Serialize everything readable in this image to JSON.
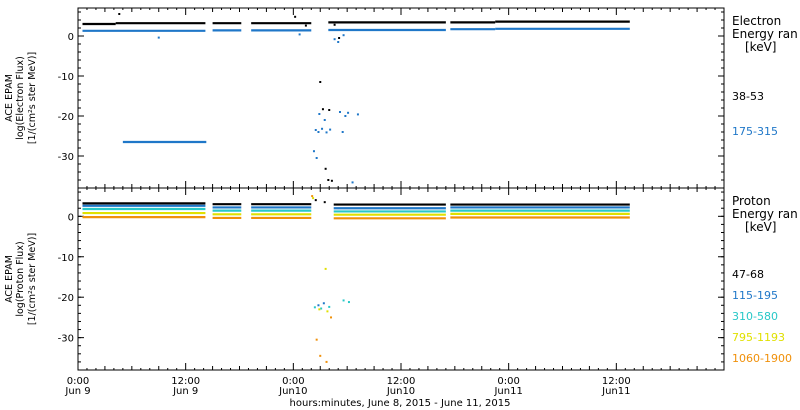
{
  "chart_data": [
    {
      "type": "scatter",
      "panel": "electron",
      "ylabel": [
        "ACE EPAM",
        "log(Electron Flux)",
        "[1/(cm²s ster MeV)]"
      ],
      "ylim": [
        -38,
        7
      ],
      "yticks": [
        0,
        -10,
        -20,
        -30
      ],
      "legend_title": [
        "Electron",
        "Energy ran",
        "[keV]"
      ],
      "legend_placement": "right",
      "series": [
        {
          "name": "38-53",
          "color": "#000000",
          "segments": [
            {
              "x": [
                0.5,
                4.2
              ],
              "y": 3.0
            },
            {
              "x": [
                4.2,
                14.2
              ],
              "y": 3.2
            },
            {
              "x": [
                15.0,
                18.2
              ],
              "y": 3.2
            },
            {
              "x": [
                19.3,
                26.0
              ],
              "y": 3.2
            },
            {
              "x": [
                27.9,
                41.0
              ],
              "y": 3.4
            },
            {
              "x": [
                41.5,
                46.5
              ],
              "y": 3.4
            },
            {
              "x": [
                46.5,
                61.5
              ],
              "y": 3.6
            }
          ],
          "scatter": [
            [
              4.6,
              5.5
            ],
            [
              24.2,
              4.8
            ],
            [
              27.0,
              -11.5
            ],
            [
              27.3,
              -18.3
            ],
            [
              28.0,
              -18.5
            ],
            [
              27.6,
              -33.2
            ],
            [
              27.9,
              -36.0
            ],
            [
              28.3,
              -36.2
            ],
            [
              29.1,
              -0.5
            ],
            [
              28.6,
              2.8
            ],
            [
              25.4,
              2.6
            ]
          ]
        },
        {
          "name": "175-315",
          "color": "#1f77c8",
          "segments": [
            {
              "x": [
                0.5,
                14.2
              ],
              "y": 1.3
            },
            {
              "x": [
                15.0,
                18.2
              ],
              "y": 1.4
            },
            {
              "x": [
                19.3,
                26.0
              ],
              "y": 1.4
            },
            {
              "x": [
                27.9,
                41.0
              ],
              "y": 1.5
            },
            {
              "x": [
                41.5,
                46.5
              ],
              "y": 1.7
            },
            {
              "x": [
                46.5,
                61.5
              ],
              "y": 1.8
            },
            {
              "x": [
                5.0,
                14.3
              ],
              "y": -26.5
            }
          ],
          "scatter": [
            [
              26.5,
              -23.5
            ],
            [
              26.8,
              -24.0
            ],
            [
              27.2,
              -23.2
            ],
            [
              27.7,
              -24.1
            ],
            [
              28.1,
              -23.4
            ],
            [
              26.9,
              -19.5
            ],
            [
              27.5,
              -21.0
            ],
            [
              26.3,
              -28.8
            ],
            [
              26.6,
              -30.5
            ],
            [
              29.2,
              -19.0
            ],
            [
              29.8,
              -20.0
            ],
            [
              30.1,
              -19.2
            ],
            [
              31.2,
              -19.6
            ],
            [
              29.5,
              -24.0
            ],
            [
              30.6,
              -36.6
            ],
            [
              28.6,
              -0.8
            ],
            [
              29.0,
              -1.5
            ],
            [
              29.6,
              0.2
            ],
            [
              9.0,
              -0.4
            ],
            [
              24.7,
              0.4
            ]
          ]
        }
      ]
    },
    {
      "type": "scatter",
      "panel": "proton",
      "ylabel": [
        "ACE EPAM",
        "log(Proton Flux)",
        "[1/(cm²s ster MeV)]"
      ],
      "ylim": [
        -38,
        7
      ],
      "yticks": [
        0,
        -10,
        -20,
        -30
      ],
      "legend_title": [
        "Proton",
        "Energy ran",
        "[keV]"
      ],
      "legend_placement": "right",
      "series": [
        {
          "name": "47-68",
          "color": "#000000",
          "segments": [
            {
              "x": [
                0.5,
                14.2
              ],
              "y": 3.2
            },
            {
              "x": [
                15.0,
                18.2
              ],
              "y": 3.0
            },
            {
              "x": [
                19.3,
                26.0
              ],
              "y": 3.0
            },
            {
              "x": [
                28.5,
                41.0
              ],
              "y": 2.9
            },
            {
              "x": [
                41.5,
                61.5
              ],
              "y": 2.9
            }
          ],
          "scatter": [
            [
              26.5,
              4.0
            ],
            [
              27.5,
              3.5
            ]
          ]
        },
        {
          "name": "115-195",
          "color": "#1f77c8",
          "segments": [
            {
              "x": [
                0.5,
                14.2
              ],
              "y": 2.6
            },
            {
              "x": [
                15.0,
                18.2
              ],
              "y": 2.2
            },
            {
              "x": [
                19.3,
                26.0
              ],
              "y": 2.2
            },
            {
              "x": [
                28.5,
                41.0
              ],
              "y": 2.0
            },
            {
              "x": [
                41.5,
                61.5
              ],
              "y": 2.2
            }
          ],
          "scatter": [
            [
              26.8,
              -22.0
            ],
            [
              27.4,
              -21.5
            ]
          ]
        },
        {
          "name": "310-580",
          "color": "#28c8c8",
          "segments": [
            {
              "x": [
                0.5,
                14.2
              ],
              "y": 1.8
            },
            {
              "x": [
                15.0,
                18.2
              ],
              "y": 1.4
            },
            {
              "x": [
                19.3,
                26.0
              ],
              "y": 1.4
            },
            {
              "x": [
                28.5,
                41.0
              ],
              "y": 1.2
            },
            {
              "x": [
                41.5,
                61.5
              ],
              "y": 1.4
            }
          ],
          "scatter": [
            [
              26.4,
              -22.5
            ],
            [
              27.1,
              -22.8
            ],
            [
              28.0,
              -22.4
            ],
            [
              29.6,
              -20.8
            ],
            [
              30.2,
              -21.2
            ]
          ]
        },
        {
          "name": "795-1193",
          "color": "#e0e000",
          "segments": [
            {
              "x": [
                0.5,
                14.2
              ],
              "y": 0.8
            },
            {
              "x": [
                15.0,
                18.2
              ],
              "y": 0.5
            },
            {
              "x": [
                19.3,
                26.0
              ],
              "y": 0.5
            },
            {
              "x": [
                28.5,
                41.0
              ],
              "y": 0.4
            },
            {
              "x": [
                41.5,
                61.5
              ],
              "y": 0.6
            }
          ],
          "scatter": [
            [
              26.2,
              4.5
            ],
            [
              27.6,
              -13.0
            ],
            [
              26.9,
              -23.0
            ],
            [
              27.8,
              -23.5
            ]
          ]
        },
        {
          "name": "1060-1900",
          "color": "#f0900a",
          "segments": [
            {
              "x": [
                0.5,
                14.2
              ],
              "y": -0.2
            },
            {
              "x": [
                15.0,
                18.2
              ],
              "y": -0.4
            },
            {
              "x": [
                19.3,
                26.0
              ],
              "y": -0.4
            },
            {
              "x": [
                28.5,
                41.0
              ],
              "y": -0.5
            },
            {
              "x": [
                41.5,
                61.5
              ],
              "y": -0.3
            }
          ],
          "scatter": [
            [
              26.1,
              5.0
            ],
            [
              26.6,
              -30.5
            ],
            [
              27.0,
              -34.5
            ],
            [
              27.7,
              -36.0
            ],
            [
              28.2,
              -25.0
            ]
          ]
        }
      ]
    }
  ],
  "x_axis": {
    "xlim": [
      0,
      72
    ],
    "ticks": [
      {
        "x": 0,
        "l1": "0:00",
        "l2": "Jun 9"
      },
      {
        "x": 12,
        "l1": "12:00",
        "l2": "Jun 9"
      },
      {
        "x": 24,
        "l1": "0:00",
        "l2": "Jun10"
      },
      {
        "x": 36,
        "l1": "12:00",
        "l2": "Jun10"
      },
      {
        "x": 48,
        "l1": "0:00",
        "l2": "Jun11"
      },
      {
        "x": 60,
        "l1": "12:00",
        "l2": "Jun11"
      }
    ],
    "xlabel": "hours:minutes, June  8, 2015 - June 11, 2015"
  }
}
